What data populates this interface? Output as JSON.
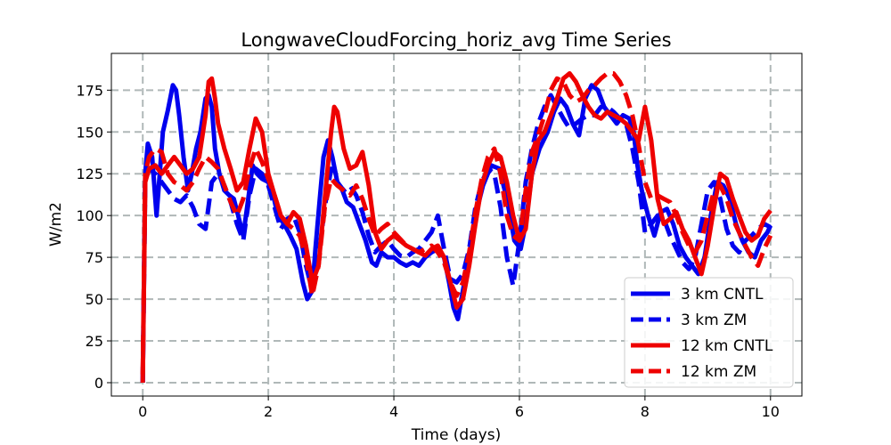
{
  "chart_data": {
    "type": "line",
    "title": "LongwaveCloudForcing_horiz_avg Time Series",
    "xlabel": "Time (days)",
    "ylabel": "W/m2",
    "xlim": [
      -0.5,
      10.5
    ],
    "ylim": [
      -8,
      197
    ],
    "xticks": [
      0,
      2,
      4,
      6,
      8,
      10
    ],
    "yticks": [
      0,
      25,
      50,
      75,
      100,
      125,
      150,
      175
    ],
    "grid": true,
    "legend_position": "lower-right",
    "series": [
      {
        "name": "3 km CNTL",
        "color": "#0000ee",
        "dash": "solid",
        "x": [
          0,
          0.04,
          0.08,
          0.15,
          0.22,
          0.28,
          0.32,
          0.4,
          0.48,
          0.53,
          0.58,
          0.65,
          0.72,
          0.78,
          0.85,
          0.92,
          1.0,
          1.05,
          1.1,
          1.15,
          1.22,
          1.3,
          1.38,
          1.45,
          1.52,
          1.6,
          1.68,
          1.75,
          1.82,
          1.9,
          2.0,
          2.08,
          2.15,
          2.25,
          2.35,
          2.45,
          2.55,
          2.62,
          2.7,
          2.75,
          2.82,
          2.88,
          2.95,
          3.02,
          3.1,
          3.18,
          3.25,
          3.35,
          3.45,
          3.55,
          3.65,
          3.72,
          3.8,
          3.9,
          4.0,
          4.1,
          4.2,
          4.3,
          4.4,
          4.5,
          4.6,
          4.7,
          4.8,
          4.88,
          4.95,
          5.02,
          5.1,
          5.2,
          5.3,
          5.42,
          5.55,
          5.68,
          5.8,
          5.92,
          6.02,
          6.1,
          6.2,
          6.32,
          6.45,
          6.55,
          6.65,
          6.75,
          6.85,
          6.95,
          7.05,
          7.15,
          7.25,
          7.35,
          7.45,
          7.55,
          7.65,
          7.75,
          7.82,
          7.88,
          7.95,
          8.05,
          8.15,
          8.25,
          8.35,
          8.45,
          8.55,
          8.65,
          8.75,
          8.85,
          8.95,
          9.05,
          9.15,
          9.25,
          9.35,
          9.45,
          9.55,
          9.65,
          9.75,
          9.85,
          9.95,
          10.0
        ],
        "y": [
          0,
          125,
          143,
          135,
          100,
          130,
          150,
          163,
          178,
          175,
          160,
          135,
          115,
          125,
          140,
          150,
          170,
          172,
          165,
          140,
          125,
          115,
          112,
          110,
          100,
          88,
          110,
          130,
          125,
          122,
          120,
          112,
          100,
          95,
          88,
          80,
          60,
          50,
          55,
          80,
          110,
          135,
          145,
          135,
          120,
          115,
          108,
          105,
          95,
          85,
          72,
          70,
          78,
          75,
          75,
          72,
          70,
          72,
          70,
          75,
          78,
          80,
          75,
          60,
          45,
          38,
          55,
          75,
          100,
          118,
          130,
          128,
          110,
          85,
          80,
          95,
          125,
          140,
          150,
          162,
          170,
          165,
          155,
          148,
          170,
          178,
          175,
          165,
          160,
          155,
          160,
          158,
          150,
          130,
          115,
          100,
          88,
          102,
          104,
          95,
          82,
          75,
          70,
          65,
          75,
          100,
          120,
          118,
          110,
          95,
          85,
          78,
          75,
          85,
          90,
          94
        ]
      },
      {
        "name": "3 km ZM",
        "color": "#0000ee",
        "dash": "dashed",
        "x": [
          0,
          0.04,
          0.1,
          0.2,
          0.3,
          0.4,
          0.5,
          0.6,
          0.7,
          0.8,
          0.9,
          1.0,
          1.1,
          1.2,
          1.3,
          1.4,
          1.5,
          1.6,
          1.7,
          1.8,
          1.9,
          2.0,
          2.1,
          2.2,
          2.3,
          2.4,
          2.5,
          2.6,
          2.7,
          2.8,
          2.9,
          3.0,
          3.1,
          3.2,
          3.3,
          3.4,
          3.5,
          3.6,
          3.7,
          3.8,
          3.9,
          4.0,
          4.1,
          4.2,
          4.3,
          4.4,
          4.5,
          4.6,
          4.7,
          4.8,
          4.9,
          5.0,
          5.1,
          5.2,
          5.3,
          5.4,
          5.5,
          5.6,
          5.7,
          5.8,
          5.9,
          6.0,
          6.1,
          6.2,
          6.3,
          6.4,
          6.5,
          6.6,
          6.7,
          6.8,
          6.9,
          7.0,
          7.1,
          7.2,
          7.3,
          7.4,
          7.5,
          7.6,
          7.7,
          7.8,
          7.9,
          8.0,
          8.1,
          8.2,
          8.3,
          8.4,
          8.5,
          8.6,
          8.7,
          8.8,
          8.9,
          9.0,
          9.1,
          9.2,
          9.3,
          9.4,
          9.5,
          9.6,
          9.7,
          9.8,
          9.9,
          10.0
        ],
        "y": [
          0,
          120,
          128,
          125,
          120,
          115,
          110,
          108,
          112,
          105,
          95,
          92,
          120,
          125,
          118,
          108,
          95,
          85,
          112,
          128,
          125,
          118,
          105,
          92,
          98,
          100,
          90,
          70,
          55,
          75,
          105,
          128,
          120,
          115,
          118,
          112,
          102,
          88,
          78,
          82,
          85,
          80,
          76,
          75,
          78,
          80,
          85,
          90,
          100,
          80,
          62,
          60,
          65,
          80,
          105,
          120,
          128,
          125,
          105,
          75,
          58,
          85,
          120,
          140,
          155,
          165,
          172,
          165,
          158,
          152,
          155,
          158,
          160,
          160,
          165,
          165,
          162,
          158,
          155,
          140,
          120,
          90,
          95,
          100,
          98,
          88,
          80,
          72,
          68,
          75,
          95,
          115,
          120,
          110,
          92,
          82,
          78,
          85,
          88,
          92,
          95,
          93
        ]
      },
      {
        "name": "12 km CNTL",
        "color": "#ee0000",
        "dash": "solid",
        "x": [
          0,
          0.04,
          0.1,
          0.2,
          0.3,
          0.4,
          0.5,
          0.6,
          0.7,
          0.8,
          0.9,
          1.0,
          1.05,
          1.1,
          1.15,
          1.2,
          1.3,
          1.4,
          1.5,
          1.6,
          1.7,
          1.8,
          1.9,
          2.0,
          2.1,
          2.2,
          2.3,
          2.4,
          2.5,
          2.6,
          2.7,
          2.8,
          2.9,
          3.0,
          3.05,
          3.1,
          3.2,
          3.3,
          3.4,
          3.5,
          3.6,
          3.7,
          3.8,
          3.9,
          4.0,
          4.1,
          4.2,
          4.3,
          4.4,
          4.5,
          4.6,
          4.7,
          4.8,
          4.9,
          5.0,
          5.1,
          5.2,
          5.3,
          5.4,
          5.5,
          5.6,
          5.7,
          5.8,
          5.9,
          6.0,
          6.1,
          6.2,
          6.3,
          6.4,
          6.5,
          6.6,
          6.7,
          6.8,
          6.9,
          7.0,
          7.1,
          7.2,
          7.3,
          7.4,
          7.5,
          7.6,
          7.7,
          7.8,
          7.9,
          8.0,
          8.1,
          8.2,
          8.3,
          8.4,
          8.5,
          8.6,
          8.7,
          8.8,
          8.9,
          9.0,
          9.1,
          9.2,
          9.3,
          9.4,
          9.5,
          9.6,
          9.7,
          9.8,
          9.9,
          10.0
        ],
        "y": [
          0,
          120,
          128,
          130,
          125,
          130,
          135,
          130,
          125,
          128,
          135,
          160,
          180,
          182,
          170,
          155,
          140,
          128,
          115,
          120,
          140,
          158,
          150,
          125,
          112,
          100,
          95,
          102,
          98,
          82,
          60,
          70,
          110,
          150,
          165,
          162,
          140,
          128,
          130,
          138,
          118,
          90,
          80,
          85,
          88,
          85,
          82,
          80,
          78,
          76,
          80,
          82,
          75,
          60,
          45,
          50,
          70,
          95,
          118,
          130,
          138,
          135,
          120,
          100,
          85,
          92,
          125,
          145,
          150,
          160,
          170,
          182,
          185,
          180,
          172,
          165,
          160,
          158,
          162,
          160,
          158,
          155,
          150,
          145,
          165,
          145,
          110,
          95,
          98,
          102,
          92,
          85,
          75,
          65,
          82,
          105,
          125,
          122,
          110,
          100,
          90,
          85,
          88,
          98,
          103
        ]
      },
      {
        "name": "12 km ZM",
        "color": "#ee0000",
        "dash": "dashed",
        "x": [
          0,
          0.04,
          0.1,
          0.2,
          0.3,
          0.4,
          0.5,
          0.6,
          0.7,
          0.8,
          0.9,
          1.0,
          1.1,
          1.2,
          1.3,
          1.4,
          1.5,
          1.6,
          1.7,
          1.8,
          1.9,
          2.0,
          2.1,
          2.2,
          2.3,
          2.4,
          2.5,
          2.6,
          2.7,
          2.8,
          2.9,
          3.0,
          3.1,
          3.2,
          3.3,
          3.4,
          3.5,
          3.6,
          3.7,
          3.8,
          3.9,
          4.0,
          4.1,
          4.2,
          4.3,
          4.4,
          4.5,
          4.6,
          4.7,
          4.8,
          4.9,
          5.0,
          5.1,
          5.2,
          5.3,
          5.4,
          5.5,
          5.6,
          5.7,
          5.8,
          5.9,
          6.0,
          6.1,
          6.2,
          6.3,
          6.4,
          6.5,
          6.6,
          6.7,
          6.8,
          6.9,
          7.0,
          7.1,
          7.2,
          7.3,
          7.4,
          7.5,
          7.6,
          7.7,
          7.8,
          7.9,
          8.0,
          8.1,
          8.2,
          8.3,
          8.4,
          8.5,
          8.6,
          8.7,
          8.8,
          8.9,
          9.0,
          9.1,
          9.2,
          9.3,
          9.4,
          9.5,
          9.6,
          9.7,
          9.8,
          9.9,
          10.0
        ],
        "y": [
          5,
          125,
          135,
          140,
          138,
          125,
          120,
          118,
          115,
          120,
          128,
          135,
          132,
          128,
          118,
          108,
          100,
          110,
          128,
          140,
          132,
          122,
          112,
          100,
          95,
          92,
          88,
          75,
          52,
          70,
          105,
          122,
          118,
          115,
          112,
          118,
          110,
          98,
          88,
          92,
          95,
          90,
          86,
          82,
          80,
          78,
          80,
          82,
          78,
          72,
          60,
          52,
          60,
          78,
          102,
          122,
          135,
          140,
          125,
          100,
          88,
          85,
          115,
          138,
          148,
          160,
          175,
          182,
          180,
          172,
          168,
          170,
          175,
          178,
          182,
          185,
          185,
          180,
          172,
          160,
          142,
          120,
          110,
          112,
          110,
          108,
          100,
          90,
          82,
          78,
          85,
          100,
          115,
          118,
          110,
          98,
          90,
          82,
          75,
          70,
          80,
          88
        ]
      }
    ],
    "legend_entries": [
      "3 km CNTL",
      "3 km ZM",
      "12 km CNTL",
      "12 km ZM"
    ]
  }
}
